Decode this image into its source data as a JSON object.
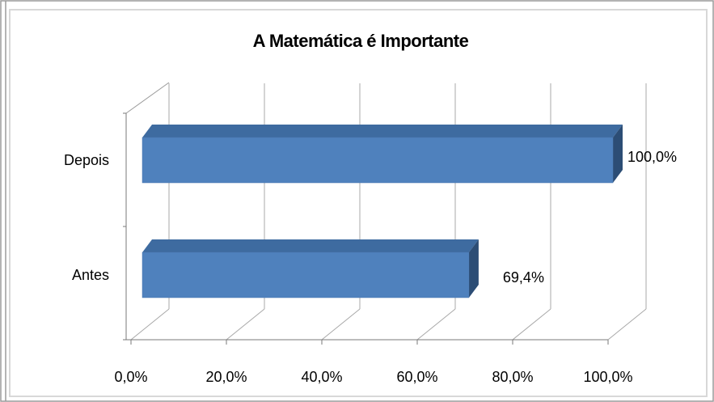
{
  "chart_data": {
    "type": "bar",
    "orientation": "horizontal",
    "style": "3d",
    "title": "A Matemática é Importante",
    "categories": [
      "Antes",
      "Depois"
    ],
    "values": [
      69.4,
      100.0
    ],
    "data_labels": [
      "69,4%",
      "100,0%"
    ],
    "xlim": [
      0,
      100
    ],
    "x_ticks": [
      0,
      20,
      40,
      60,
      80,
      100
    ],
    "x_tick_labels": [
      "0,0%",
      "20,0%",
      "40,0%",
      "60,0%",
      "80,0%",
      "100,0%"
    ],
    "grid": true,
    "legend": "none",
    "bar_color": "#4F81BD",
    "bar_top_color": "#3E6BA0",
    "bar_side_color": "#2C4D75"
  }
}
